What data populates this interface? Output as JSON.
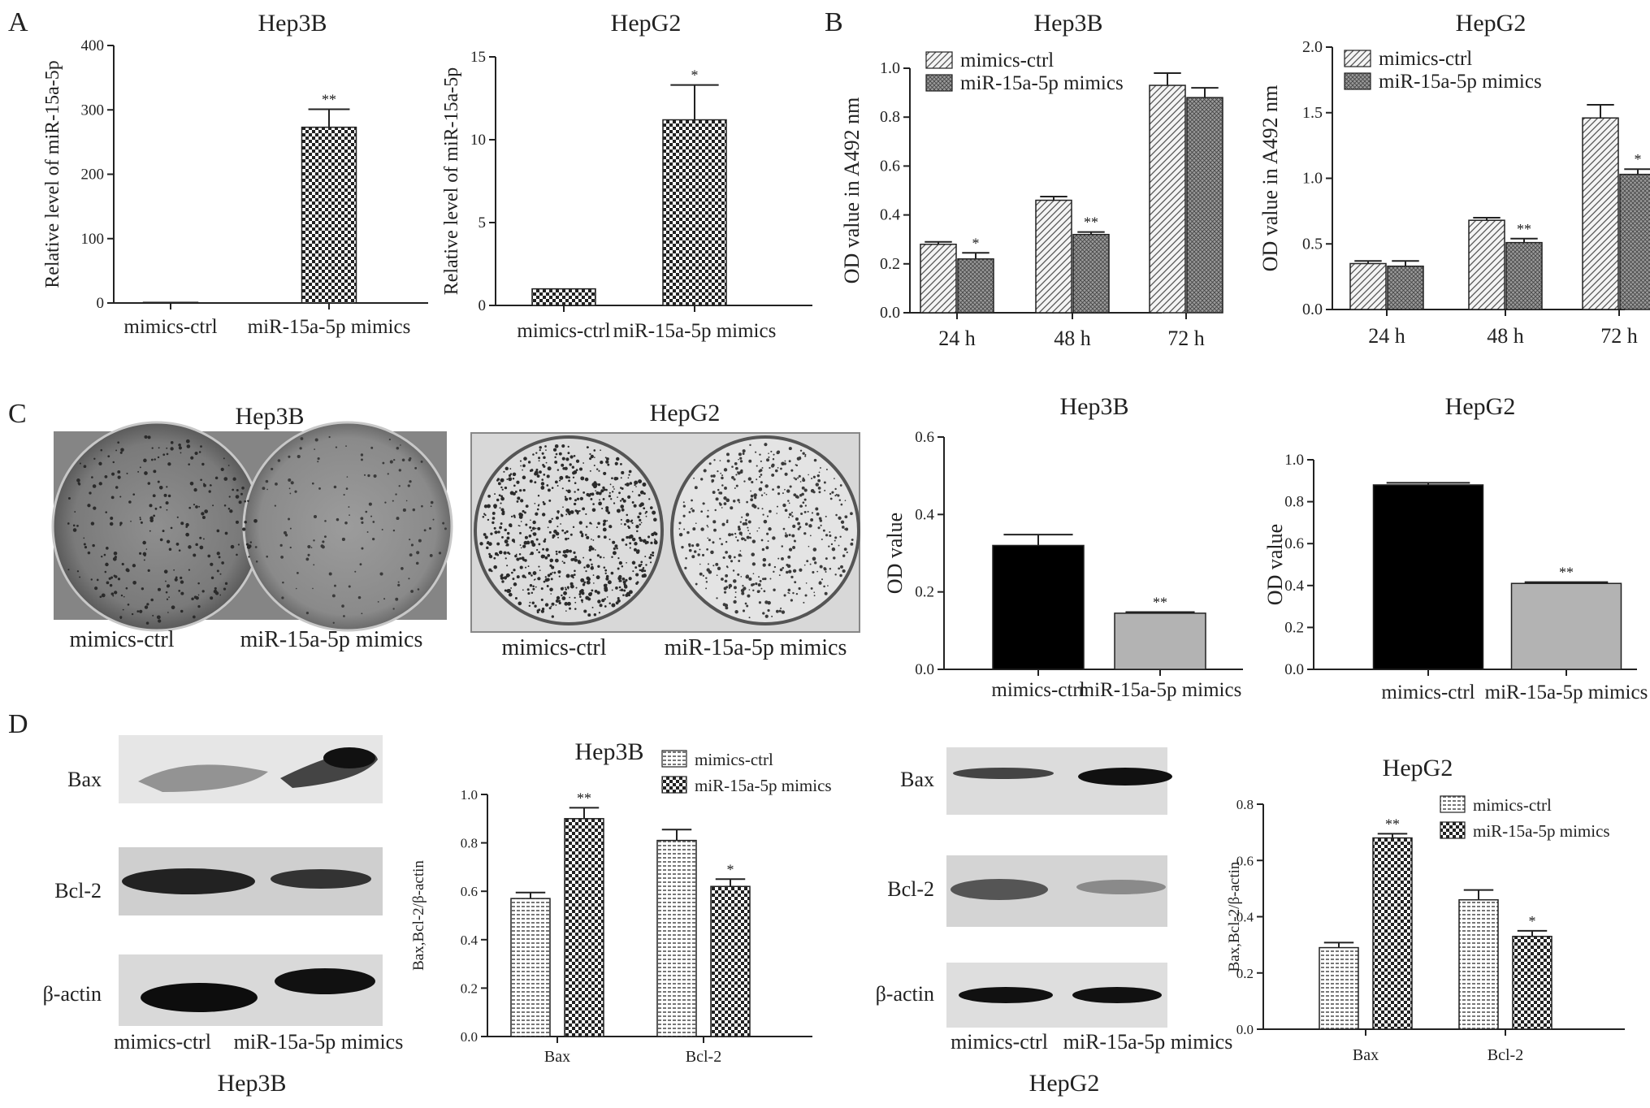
{
  "panel_letters": {
    "A": "A",
    "B": "B",
    "C": "C",
    "D": "D"
  },
  "colors": {
    "ink": "#1a1a1a",
    "bar_black": "#000000",
    "bar_gray": "#b3b3b3"
  },
  "photos": {
    "hep3b_title": "Hep3B",
    "hepg2_title": "HepG2",
    "hep3b_labels": [
      "mimics-ctrl",
      "miR-15a-5p mimics"
    ],
    "hepg2_labels": [
      "mimics-ctrl",
      "miR-15a-5p mimics"
    ]
  },
  "blots": {
    "hep3b": {
      "rows": [
        "Bax",
        "Bcl-2",
        "β-actin"
      ],
      "lanes": [
        "mimics-ctrl",
        "miR-15a-5p mimics"
      ],
      "caption": "Hep3B"
    },
    "hepg2": {
      "rows": [
        "Bax",
        "Bcl-2",
        "β-actin"
      ],
      "lanes": [
        "mimics-ctrl",
        "miR-15a-5p mimics"
      ],
      "caption": "HepG2"
    }
  },
  "chart_data": [
    {
      "id": "A1",
      "type": "bar",
      "title": "Hep3B",
      "xlabel": "",
      "ylabel": "Relative level of miR-15a-5p",
      "categories": [
        "mimics-ctrl",
        "miR-15a-5p mimics"
      ],
      "series": [
        {
          "values": [
            1,
            273
          ],
          "errors": [
            0,
            28
          ],
          "annotations": [
            "",
            "**"
          ],
          "pattern": [
            "checker",
            "checker"
          ]
        }
      ],
      "ylim": [
        0,
        400
      ],
      "yticks": [
        "0",
        "100",
        "200",
        "300",
        "400"
      ],
      "grid": false
    },
    {
      "id": "A2",
      "type": "bar",
      "title": "HepG2",
      "xlabel": "",
      "ylabel": "Relative level of miR-15a-5p",
      "categories": [
        "mimics-ctrl",
        "miR-15a-5p mimics"
      ],
      "series": [
        {
          "values": [
            1,
            11.2
          ],
          "errors": [
            0,
            2.1
          ],
          "annotations": [
            "",
            "*"
          ],
          "pattern": [
            "checker",
            "checker"
          ]
        }
      ],
      "ylim": [
        0,
        15
      ],
      "yticks": [
        "0",
        "5",
        "10",
        "15"
      ],
      "grid": false
    },
    {
      "id": "B1",
      "type": "bar",
      "title": "Hep3B",
      "xlabel": "",
      "ylabel": "OD value in A492 nm",
      "categories": [
        "24 h",
        "48 h",
        "72 h"
      ],
      "series": [
        {
          "name": "mimics-ctrl",
          "values": [
            0.28,
            0.46,
            0.93
          ],
          "errors": [
            0.01,
            0.015,
            0.05
          ],
          "annotations": [
            "",
            "",
            ""
          ],
          "pattern": "diag"
        },
        {
          "name": "miR-15a-5p mimics",
          "values": [
            0.22,
            0.32,
            0.88
          ],
          "errors": [
            0.025,
            0.01,
            0.04
          ],
          "annotations": [
            "*",
            "**",
            ""
          ],
          "pattern": "crossfine"
        }
      ],
      "ylim": [
        0,
        1.0
      ],
      "yticks": [
        "0.0",
        "0.2",
        "0.4",
        "0.6",
        "0.8",
        "1.0"
      ],
      "legend": "top-left",
      "grid": false
    },
    {
      "id": "B2",
      "type": "bar",
      "title": "HepG2",
      "xlabel": "",
      "ylabel": "OD value in A492 nm",
      "categories": [
        "24 h",
        "48 h",
        "72 h"
      ],
      "series": [
        {
          "name": "mimics-ctrl",
          "values": [
            0.35,
            0.68,
            1.46
          ],
          "errors": [
            0.02,
            0.02,
            0.1
          ],
          "annotations": [
            "",
            "",
            ""
          ],
          "pattern": "diag"
        },
        {
          "name": "miR-15a-5p mimics",
          "values": [
            0.33,
            0.51,
            1.03
          ],
          "errors": [
            0.04,
            0.03,
            0.04
          ],
          "annotations": [
            "",
            "**",
            "*"
          ],
          "pattern": "crossfine"
        }
      ],
      "ylim": [
        0,
        2.0
      ],
      "yticks": [
        "0.0",
        "0.5",
        "1.0",
        "1.5",
        "2.0"
      ],
      "legend": "top-left",
      "grid": false
    },
    {
      "id": "C1",
      "type": "bar",
      "title": "Hep3B",
      "xlabel": "",
      "ylabel": "OD value",
      "categories": [
        "mimics-ctrl",
        "miR-15a-5p mimics"
      ],
      "series": [
        {
          "values": [
            0.32,
            0.145
          ],
          "errors": [
            0.028,
            0.003
          ],
          "annotations": [
            "",
            "**"
          ],
          "pattern": [
            "black",
            "gray"
          ]
        }
      ],
      "ylim": [
        0,
        0.6
      ],
      "yticks": [
        "0.0",
        "0.2",
        "0.4",
        "0.6"
      ],
      "grid": false
    },
    {
      "id": "C2",
      "type": "bar",
      "title": "HepG2",
      "xlabel": "",
      "ylabel": "OD value",
      "categories": [
        "mimics-ctrl",
        "miR-15a-5p mimics"
      ],
      "series": [
        {
          "values": [
            0.88,
            0.41
          ],
          "errors": [
            0.01,
            0.006
          ],
          "annotations": [
            "",
            "**"
          ],
          "pattern": [
            "black",
            "gray"
          ]
        }
      ],
      "ylim": [
        0,
        1.0
      ],
      "yticks": [
        "0.0",
        "0.2",
        "0.4",
        "0.6",
        "0.8",
        "1.0"
      ],
      "grid": false
    },
    {
      "id": "D1",
      "type": "bar",
      "title": "Hep3B",
      "xlabel": "",
      "ylabel": "Bax,Bcl-2/β-actin",
      "categories": [
        "Bax",
        "Bcl-2"
      ],
      "series": [
        {
          "name": "mimics-ctrl",
          "values": [
            0.57,
            0.81
          ],
          "errors": [
            0.025,
            0.045
          ],
          "annotations": [
            "",
            ""
          ],
          "pattern": "hlines"
        },
        {
          "name": "miR-15a-5p mimics",
          "values": [
            0.9,
            0.62
          ],
          "errors": [
            0.045,
            0.03
          ],
          "annotations": [
            "**",
            "*"
          ],
          "pattern": "checker"
        }
      ],
      "ylim": [
        0,
        1.0
      ],
      "yticks": [
        "0.0",
        "0.2",
        "0.4",
        "0.6",
        "0.8",
        "1.0"
      ],
      "legend": "top-right",
      "grid": false
    },
    {
      "id": "D2",
      "type": "bar",
      "title": "HepG2",
      "xlabel": "",
      "ylabel": "Bax,Bcl-2/β-actin",
      "categories": [
        "Bax",
        "Bcl-2"
      ],
      "series": [
        {
          "name": "mimics-ctrl",
          "values": [
            0.29,
            0.46
          ],
          "errors": [
            0.018,
            0.035
          ],
          "annotations": [
            "",
            ""
          ],
          "pattern": "hlines"
        },
        {
          "name": "miR-15a-5p mimics",
          "values": [
            0.68,
            0.33
          ],
          "errors": [
            0.015,
            0.02
          ],
          "annotations": [
            "**",
            "*"
          ],
          "pattern": "checker"
        }
      ],
      "ylim": [
        0,
        0.8
      ],
      "yticks": [
        "0.0",
        "0.2",
        "0.4",
        "0.6",
        "0.8"
      ],
      "legend": "top-right",
      "grid": false
    }
  ]
}
